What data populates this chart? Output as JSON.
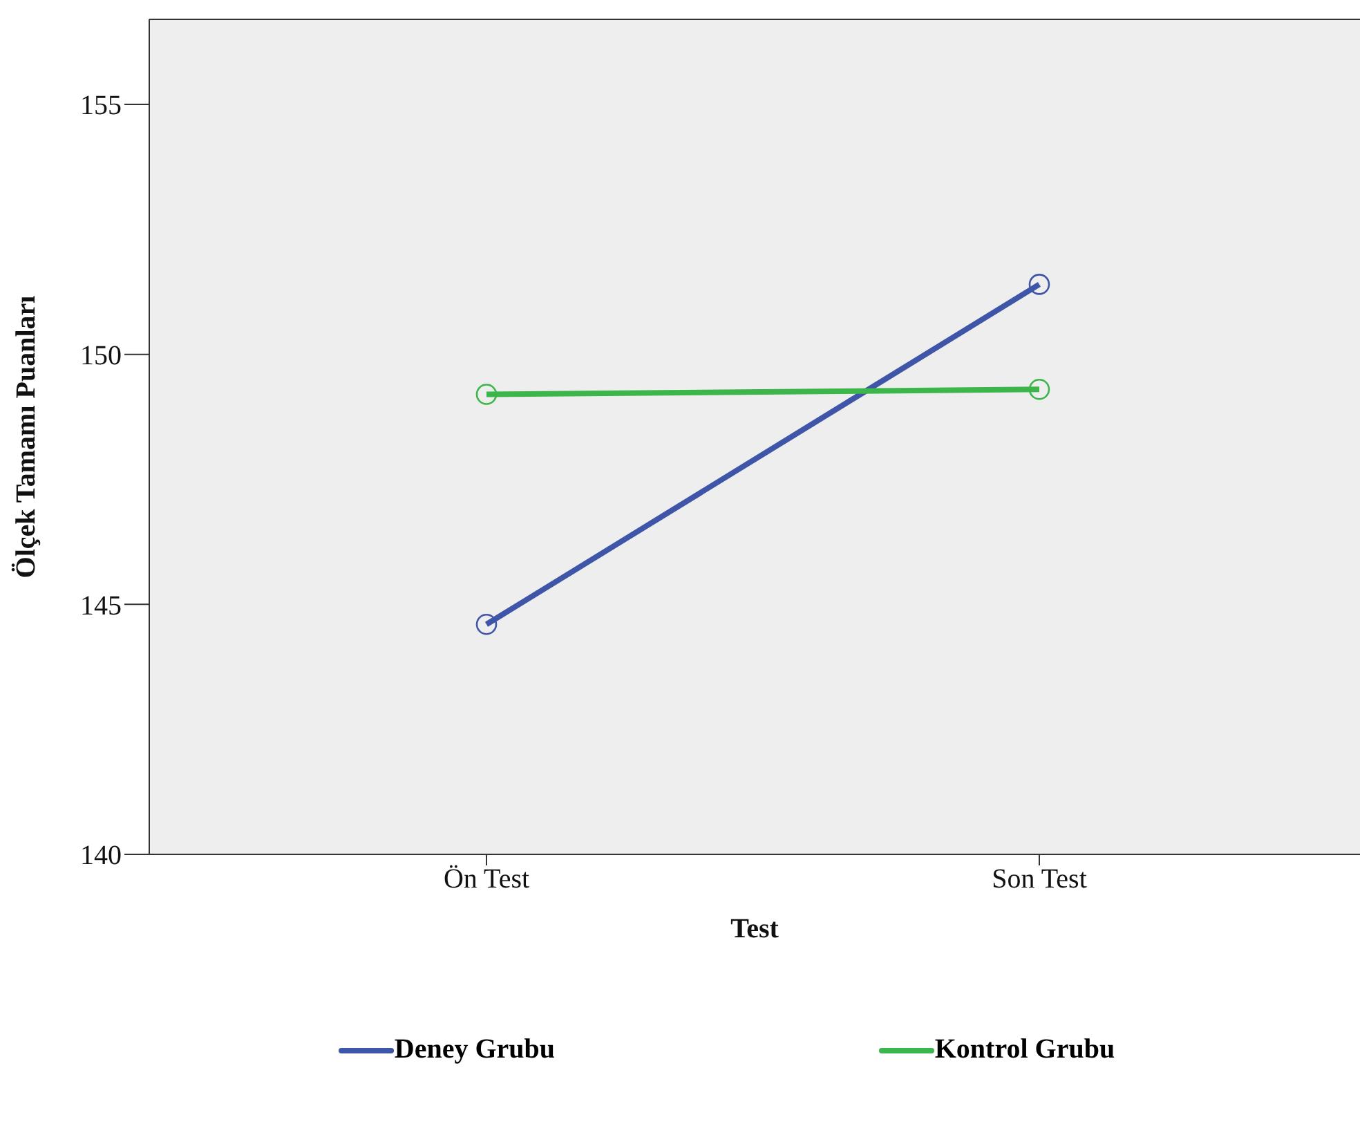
{
  "chart_data": {
    "type": "line",
    "xlabel": "Test",
    "ylabel": "Ölçek Tamamı Puanları",
    "categories": [
      "Ön Test",
      "Son Test"
    ],
    "series": [
      {
        "name": "Deney Grubu",
        "color": "#3f56a8",
        "values": [
          144.6,
          151.4
        ]
      },
      {
        "name": "Kontrol Grubu",
        "color": "#3cb54a",
        "values": [
          149.2,
          149.3
        ]
      }
    ],
    "ylim": [
      140,
      156.7
    ],
    "yticks": [
      140,
      145,
      150,
      155
    ],
    "grid": false,
    "legend": "bottom",
    "marker": "circle",
    "line_style": "solid"
  }
}
